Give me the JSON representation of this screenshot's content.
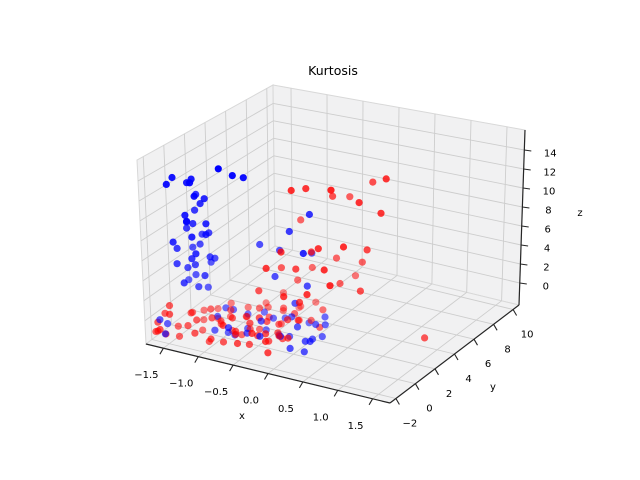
{
  "style": {
    "background": "#ffffff",
    "pane_color": "#f1f1f2",
    "grid_color": "#cdcdcd",
    "edge_color": "#d8d8d8",
    "spine_color": "#262626",
    "text_color": "#000000",
    "red": "#ff0000",
    "blue": "#0000ff"
  },
  "chart_data": {
    "type": "scatter",
    "projection": "3d",
    "title": "Kurtosis",
    "xlabel": "x",
    "ylabel": "y",
    "zlabel": "z",
    "grid": true,
    "legend": "none",
    "xlim": [
      -1.75,
      1.75
    ],
    "ylim": [
      -2.6,
      10.6
    ],
    "zlim": [
      -2.32,
      16.1
    ],
    "xticks": [
      -1.5,
      -1.0,
      -0.5,
      0.0,
      0.5,
      1.0,
      1.5
    ],
    "xtick_labels": [
      "−1.5",
      "−1.0",
      "−0.5",
      "0.0",
      "0.5",
      "1.0",
      "1.5"
    ],
    "yticks": [
      -2,
      0,
      2,
      4,
      6,
      8,
      10
    ],
    "ytick_labels": [
      "−2",
      "0",
      "2",
      "4",
      "6",
      "8",
      "10"
    ],
    "zticks": [
      0,
      2,
      4,
      6,
      8,
      10,
      12,
      14
    ],
    "ztick_labels": [
      "0",
      "2",
      "4",
      "6",
      "8",
      "10",
      "12",
      "14"
    ],
    "series": [
      {
        "name": "red",
        "color": "#ff0000",
        "points": [
          [
            -1.52,
            -0.9,
            -1.4
          ],
          [
            -1.48,
            0.3,
            -0.8
          ],
          [
            -1.45,
            -1.3,
            -2.0
          ],
          [
            -1.43,
            1.1,
            -1.1
          ],
          [
            -1.4,
            -0.4,
            -0.2
          ],
          [
            -1.38,
            0.7,
            -1.7
          ],
          [
            -1.35,
            -1.1,
            -0.9
          ],
          [
            -1.33,
            1.8,
            -1.3
          ],
          [
            -1.3,
            0.0,
            -2.1
          ],
          [
            -1.28,
            -0.7,
            -0.5
          ],
          [
            -1.26,
            1.3,
            -1.8
          ],
          [
            -1.23,
            0.4,
            -0.1
          ],
          [
            -1.21,
            -1.4,
            -1.2
          ],
          [
            -1.18,
            2.1,
            -0.7
          ],
          [
            -1.16,
            0.9,
            -1.9
          ],
          [
            -1.13,
            -0.2,
            -0.4
          ],
          [
            -1.11,
            1.5,
            -1.5
          ],
          [
            -1.08,
            -0.9,
            -2.2
          ],
          [
            -1.06,
            0.2,
            -0.9
          ],
          [
            -1.03,
            1.0,
            -0.3
          ],
          [
            -1.01,
            -1.2,
            -1.6
          ],
          [
            -0.98,
            2.4,
            -1.0
          ],
          [
            -0.96,
            0.6,
            -2.0
          ],
          [
            -0.93,
            -0.5,
            -0.6
          ],
          [
            -0.91,
            1.7,
            -1.3
          ],
          [
            -0.88,
            0.1,
            -0.2
          ],
          [
            -0.86,
            -1.0,
            -1.8
          ],
          [
            -0.83,
            1.2,
            -0.8
          ],
          [
            -0.81,
            0.5,
            -2.1
          ],
          [
            -0.78,
            -0.3,
            -1.1
          ],
          [
            -0.76,
            2.0,
            -0.4
          ],
          [
            -0.73,
            0.8,
            -1.6
          ],
          [
            -0.71,
            -0.8,
            -0.9
          ],
          [
            -0.68,
            1.4,
            -2.0
          ],
          [
            -0.66,
            0.3,
            -0.5
          ],
          [
            -0.63,
            -1.2,
            -1.4
          ],
          [
            -0.61,
            1.9,
            -1.0
          ],
          [
            -0.58,
            0.7,
            -0.1
          ],
          [
            -0.56,
            -0.5,
            -1.9
          ],
          [
            -0.53,
            1.1,
            -0.7
          ],
          [
            -0.51,
            0.0,
            -1.3
          ],
          [
            -0.48,
            2.2,
            -1.7
          ],
          [
            -0.46,
            -0.9,
            -0.3
          ],
          [
            -0.43,
            1.6,
            -1.2
          ],
          [
            -0.41,
            0.4,
            -2.0
          ],
          [
            -0.38,
            -0.1,
            -0.8
          ],
          [
            -0.36,
            1.0,
            -1.5
          ],
          [
            -0.33,
            2.5,
            -0.6
          ],
          [
            -0.31,
            -0.6,
            -1.1
          ],
          [
            -0.28,
            0.9,
            -1.9
          ],
          [
            -0.26,
            1.3,
            -0.2
          ],
          [
            -0.23,
            0.2,
            -1.0
          ],
          [
            -0.21,
            -1.1,
            -1.7
          ],
          [
            -0.18,
            1.8,
            -0.5
          ],
          [
            -0.16,
            0.6,
            -1.4
          ],
          [
            -0.75,
            2.8,
            -0.9
          ],
          [
            -0.62,
            3.4,
            -1.5
          ],
          [
            -0.5,
            2.6,
            -0.4
          ],
          [
            -0.44,
            3.9,
            -1.1
          ],
          [
            -0.35,
            3.1,
            -1.8
          ],
          [
            -0.28,
            4.3,
            -0.7
          ],
          [
            -0.7,
            4.0,
            -0.2
          ],
          [
            -0.15,
            2.9,
            -1.3
          ],
          [
            -0.08,
            3.6,
            -0.6
          ],
          [
            0.0,
            2.7,
            -1.6
          ],
          [
            -0.85,
            3.3,
            -1.0
          ],
          [
            -0.55,
            4.5,
            -1.9
          ],
          [
            -1.68,
            -1.8,
            -0.6
          ],
          [
            -1.64,
            -2.1,
            -1.2
          ],
          [
            -1.6,
            -1.6,
            -1.8
          ],
          [
            -1.66,
            -1.2,
            -0.1
          ],
          [
            -1.58,
            -2.3,
            -0.8
          ],
          [
            -1.7,
            -1.9,
            -1.5
          ],
          [
            -1.55,
            -1.5,
            0.2
          ],
          [
            -1.62,
            -1.0,
            0.6
          ],
          [
            -0.65,
            1.2,
            2.2
          ],
          [
            -0.55,
            2.8,
            3.6
          ],
          [
            -0.48,
            0.8,
            5.1
          ],
          [
            -0.42,
            3.5,
            2.0
          ],
          [
            -0.38,
            1.6,
            6.4
          ],
          [
            -0.31,
            4.2,
            3.0
          ],
          [
            -0.26,
            2.2,
            4.4
          ],
          [
            -0.21,
            0.6,
            2.8
          ],
          [
            -0.15,
            3.0,
            5.8
          ],
          [
            -0.1,
            1.4,
            1.8
          ],
          [
            -0.05,
            4.8,
            4.0
          ],
          [
            0.02,
            2.5,
            6.8
          ],
          [
            0.08,
            0.9,
            3.3
          ],
          [
            0.14,
            3.8,
            2.4
          ],
          [
            0.2,
            1.8,
            5.4
          ],
          [
            0.26,
            5.2,
            3.8
          ],
          [
            0.32,
            2.9,
            7.2
          ],
          [
            0.38,
            1.1,
            4.6
          ],
          [
            0.44,
            4.4,
            6.0
          ],
          [
            0.5,
            3.3,
            2.6
          ],
          [
            -0.58,
            5.0,
            7.0
          ],
          [
            0.12,
            5.5,
            1.9
          ],
          [
            -0.45,
            3.2,
            11.6
          ],
          [
            -0.36,
            4.0,
            11.4
          ],
          [
            -0.2,
            5.5,
            9.8
          ],
          [
            0.05,
            3.6,
            12.2
          ],
          [
            0.48,
            6.0,
            12.4
          ],
          [
            0.3,
            4.6,
            10.6
          ],
          [
            -0.1,
            6.5,
            9.2
          ],
          [
            0.55,
            5.0,
            9.6
          ],
          [
            0.18,
            6.8,
            11.0
          ],
          [
            1.32,
            4.0,
            -1.4
          ]
        ]
      },
      {
        "name": "blue",
        "color": "#0000ff",
        "points": [
          [
            -1.55,
            -0.5,
            6.2
          ],
          [
            -1.52,
            0.3,
            7.8
          ],
          [
            -1.5,
            -0.9,
            5.0
          ],
          [
            -1.47,
            0.8,
            9.4
          ],
          [
            -1.45,
            -0.2,
            4.2
          ],
          [
            -1.42,
            1.1,
            6.8
          ],
          [
            -1.4,
            0.1,
            8.6
          ],
          [
            -1.38,
            -1.1,
            3.4
          ],
          [
            -1.36,
            0.6,
            10.4
          ],
          [
            -1.33,
            -0.6,
            5.6
          ],
          [
            -1.31,
            1.0,
            7.2
          ],
          [
            -1.29,
            -0.3,
            2.6
          ],
          [
            -1.27,
            0.4,
            11.2
          ],
          [
            -1.24,
            -0.8,
            6.4
          ],
          [
            -1.22,
            0.9,
            4.8
          ],
          [
            -1.2,
            0.0,
            9.0
          ],
          [
            -1.48,
            0.2,
            12.6
          ],
          [
            -1.35,
            -0.4,
            13.2
          ],
          [
            -1.3,
            0.7,
            1.8
          ],
          [
            -1.26,
            -1.0,
            8.2
          ],
          [
            -1.44,
            0.5,
            3.0
          ],
          [
            -1.39,
            -0.7,
            10.0
          ],
          [
            -1.53,
            0.9,
            5.4
          ],
          [
            -1.25,
            0.3,
            7.6
          ],
          [
            -1.46,
            -0.1,
            8.8
          ],
          [
            -1.32,
            1.2,
            4.0
          ],
          [
            -1.28,
            -0.5,
            12.0
          ],
          [
            -1.41,
            0.8,
            6.0
          ],
          [
            -1.5,
            -1.2,
            7.4
          ],
          [
            -1.23,
            0.5,
            5.2
          ],
          [
            -1.37,
            0.0,
            4.5
          ],
          [
            -1.34,
            -0.9,
            9.6
          ],
          [
            -1.49,
            1.1,
            10.8
          ],
          [
            -1.21,
            -0.2,
            3.8
          ],
          [
            -1.43,
            0.3,
            13.0
          ],
          [
            -1.56,
            0.6,
            2.2
          ],
          [
            -1.0,
            0.0,
            15.0
          ],
          [
            -0.88,
            0.5,
            14.2
          ],
          [
            -0.8,
            1.0,
            13.8
          ],
          [
            -1.62,
            -0.8,
            12.8
          ],
          [
            -1.58,
            -0.5,
            13.4
          ],
          [
            -1.6,
            -1.4,
            -0.9
          ],
          [
            -1.65,
            -1.8,
            -0.3
          ],
          [
            -1.55,
            -2.0,
            -1.4
          ],
          [
            -0.78,
            2.3,
            6.0
          ],
          [
            -0.2,
            3.2,
            9.5
          ],
          [
            -0.5,
            1.8,
            3.5
          ],
          [
            -0.1,
            2.2,
            2.9
          ],
          [
            -0.3,
            4.1,
            4.6
          ],
          [
            -0.25,
            2.0,
            1.0
          ],
          [
            -0.05,
            1.5,
            6.9
          ],
          [
            -0.6,
            3.0,
            5.2
          ],
          [
            -0.4,
            2.6,
            7.8
          ],
          [
            -1.15,
            0.5,
            -0.8
          ],
          [
            -1.08,
            -0.3,
            -1.5
          ],
          [
            -1.02,
            1.2,
            -0.4
          ],
          [
            -0.96,
            0.2,
            -1.9
          ],
          [
            -0.9,
            1.8,
            -1.1
          ],
          [
            -0.84,
            -0.6,
            -0.6
          ],
          [
            -0.78,
            0.9,
            -1.7
          ],
          [
            -0.72,
            2.2,
            -0.9
          ],
          [
            -0.66,
            0.0,
            -1.3
          ],
          [
            -0.6,
            1.5,
            -2.0
          ],
          [
            -0.54,
            0.6,
            -0.3
          ],
          [
            -0.48,
            2.6,
            -1.4
          ],
          [
            -0.42,
            -0.4,
            -0.9
          ],
          [
            -0.36,
            1.1,
            -1.8
          ],
          [
            -0.3,
            2.0,
            -0.5
          ],
          [
            -0.24,
            0.4,
            -1.2
          ],
          [
            -0.18,
            2.9,
            -1.6
          ],
          [
            -0.12,
            1.3,
            -0.7
          ],
          [
            -0.06,
            0.1,
            -1.9
          ],
          [
            0.0,
            2.3,
            -1.0
          ],
          [
            0.06,
            0.8,
            -1.5
          ],
          [
            0.02,
            3.1,
            -0.8
          ],
          [
            0.05,
            1.6,
            -1.9
          ],
          [
            0.08,
            2.7,
            -1.2
          ],
          [
            0.1,
            1.0,
            -1.6
          ],
          [
            0.12,
            2.1,
            -1.9
          ],
          [
            -1.1,
            1.0,
            -0.2
          ],
          [
            -0.88,
            0.3,
            -2.1
          ],
          [
            -0.55,
            1.9,
            -1.0
          ],
          [
            -0.25,
            1.4,
            -2.0
          ],
          [
            0.1,
            0.4,
            -2.2
          ]
        ]
      }
    ]
  }
}
